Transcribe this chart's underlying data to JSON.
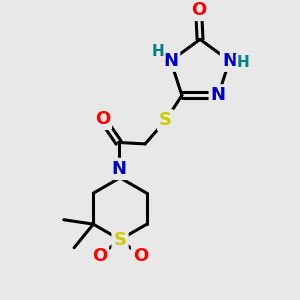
{
  "bg_color": "#e8e8e8",
  "atom_colors": {
    "C": "#000000",
    "N": "#0000cc",
    "O": "#ff0000",
    "S": "#cccc00",
    "H": "#008080"
  },
  "bond_color": "#000000",
  "bond_width": 2.2,
  "font_size_atom": 13,
  "font_size_h": 11
}
